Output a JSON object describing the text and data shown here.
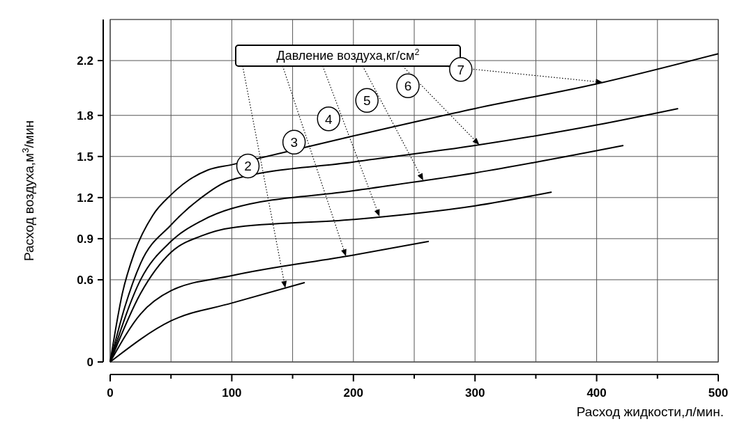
{
  "chart_data": {
    "type": "line",
    "xlabel": "Расход жидкости,л/мин.",
    "ylabel": "Расход воздуха,м$^{3}$/мин",
    "legend_title": "Давление воздуха,кг/см$^{2}$",
    "grid": true,
    "line_style": "solid",
    "xlim": [
      0,
      500
    ],
    "xticks": [
      0,
      {
        "value": 50,
        "label": null
      },
      100,
      {
        "value": 150,
        "label": null
      },
      200,
      {
        "value": 250,
        "label": null
      },
      300,
      {
        "value": 350,
        "label": null
      },
      400,
      {
        "value": 450,
        "label": null
      },
      500
    ],
    "ylim": [
      0,
      2.5
    ],
    "yticks": [
      0,
      0.6,
      0.9,
      1.2,
      1.5,
      1.8,
      2.2
    ],
    "series": [
      {
        "name": "2",
        "color": "#000000",
        "x": [
          0,
          50,
          100,
          160
        ],
        "values": [
          0,
          0.3,
          0.43,
          0.58
        ]
      },
      {
        "name": "3",
        "color": "#000000",
        "x": [
          0,
          25,
          50,
          100,
          200,
          262
        ],
        "values": [
          0,
          0.35,
          0.52,
          0.63,
          0.78,
          0.88
        ]
      },
      {
        "name": "4",
        "color": "#000000",
        "x": [
          0,
          25,
          50,
          75,
          100,
          200,
          300,
          363
        ],
        "values": [
          0,
          0.5,
          0.8,
          0.92,
          0.98,
          1.04,
          1.14,
          1.24
        ]
      },
      {
        "name": "5",
        "color": "#000000",
        "x": [
          0,
          25,
          50,
          75,
          100,
          200,
          300,
          422
        ],
        "values": [
          0,
          0.6,
          0.88,
          1.03,
          1.12,
          1.25,
          1.38,
          1.58
        ]
      },
      {
        "name": "6",
        "color": "#000000",
        "x": [
          0,
          12,
          25,
          50,
          75,
          100,
          200,
          300,
          400,
          467
        ],
        "values": [
          0,
          0.4,
          0.72,
          1.0,
          1.2,
          1.33,
          1.46,
          1.58,
          1.73,
          1.85
        ]
      },
      {
        "name": "7",
        "color": "#000000",
        "x": [
          0,
          10,
          20,
          35,
          50,
          65,
          80,
          100,
          200,
          300,
          400,
          500
        ],
        "values": [
          0,
          0.5,
          0.8,
          1.07,
          1.22,
          1.33,
          1.4,
          1.44,
          1.65,
          1.85,
          2.03,
          2.25
        ]
      }
    ]
  }
}
